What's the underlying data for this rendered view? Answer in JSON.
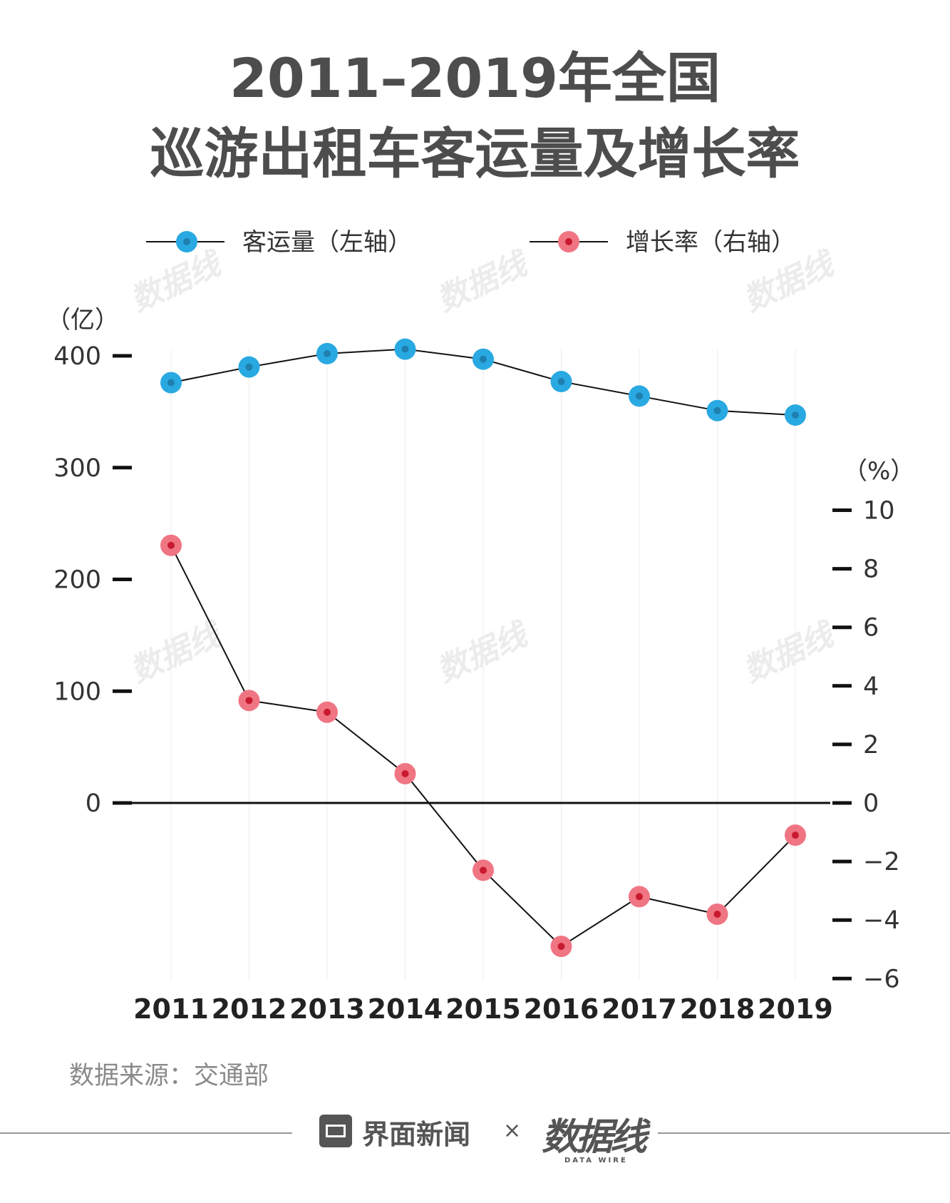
{
  "title": {
    "line1": "2011–2019年全国",
    "line2": "巡游出租车客运量及增长率"
  },
  "legend": {
    "left": "客运量（左轴）",
    "right": "增长率（右轴）"
  },
  "axes": {
    "left_unit": "（亿）",
    "right_unit": "（%）"
  },
  "source": "数据来源：交通部",
  "footer": {
    "brand": "界面新闻",
    "cross": "×",
    "logo": "数据线",
    "logo_sub": "DATA WIRE"
  },
  "watermark": "数据线",
  "colors": {
    "volume": "#29a9e1",
    "rate": "#e8455a",
    "line": "#111111",
    "title": "#4d4d4d"
  },
  "chart_data": {
    "type": "line",
    "categories": [
      "2011",
      "2012",
      "2013",
      "2014",
      "2015",
      "2016",
      "2017",
      "2018",
      "2019"
    ],
    "series": [
      {
        "name": "客运量",
        "axis": "left",
        "values": [
          376,
          390,
          402,
          406,
          397,
          377,
          364,
          351,
          347
        ]
      },
      {
        "name": "增长率",
        "axis": "right",
        "values": [
          8.8,
          3.5,
          3.1,
          1.0,
          -2.3,
          -4.9,
          -3.2,
          -3.8,
          -1.1
        ]
      }
    ],
    "left_axis": {
      "ylim": [
        0,
        400
      ],
      "ticks": [
        0,
        100,
        200,
        300,
        400
      ]
    },
    "right_axis": {
      "ylim": [
        -6,
        10
      ],
      "ticks": [
        -6,
        -4,
        -2,
        0,
        2,
        4,
        6,
        8,
        10
      ]
    },
    "legend_position": "top",
    "grid": false
  }
}
